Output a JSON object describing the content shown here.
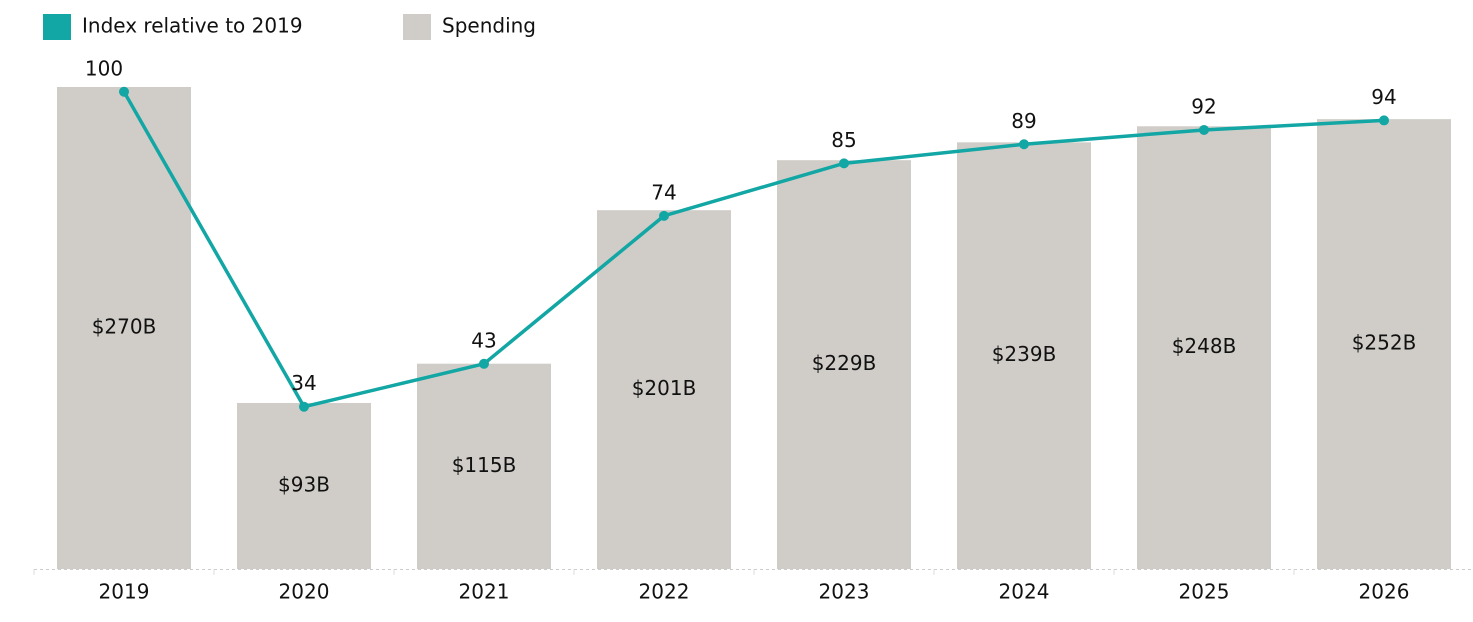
{
  "chart_data": {
    "type": "bar",
    "categories": [
      "2019",
      "2020",
      "2021",
      "2022",
      "2023",
      "2024",
      "2025",
      "2026"
    ],
    "series": [
      {
        "name": "Index relative to 2019",
        "type": "line",
        "axis": "y2",
        "color": "#12a6a4",
        "values": [
          100,
          34,
          43,
          74,
          85,
          89,
          92,
          94
        ]
      },
      {
        "name": "Spending",
        "type": "bar",
        "color": "#d0cdc8",
        "values": [
          270,
          93,
          115,
          201,
          229,
          239,
          248,
          252
        ],
        "value_labels": [
          "$270B",
          "$93B",
          "$115B",
          "$201B",
          "$229B",
          "$239B",
          "$248B",
          "$252B"
        ]
      }
    ],
    "ylim": [
      0,
      270
    ],
    "y2lim": [
      0,
      101
    ],
    "grid": false,
    "legend": "top-left"
  }
}
